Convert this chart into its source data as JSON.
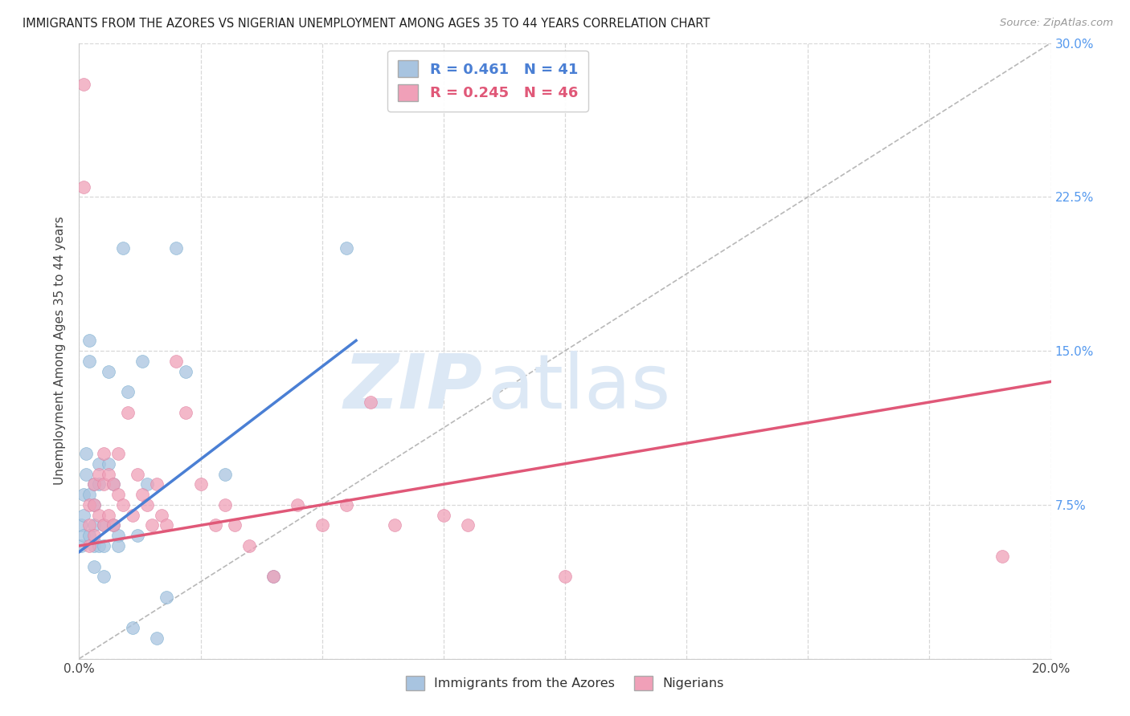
{
  "title": "IMMIGRANTS FROM THE AZORES VS NIGERIAN UNEMPLOYMENT AMONG AGES 35 TO 44 YEARS CORRELATION CHART",
  "source": "Source: ZipAtlas.com",
  "ylabel": "Unemployment Among Ages 35 to 44 years",
  "xlim": [
    0,
    0.2
  ],
  "ylim": [
    0,
    0.3
  ],
  "xticks": [
    0.0,
    0.025,
    0.05,
    0.075,
    0.1,
    0.125,
    0.15,
    0.175,
    0.2
  ],
  "yticks": [
    0.0,
    0.075,
    0.15,
    0.225,
    0.3
  ],
  "blue_R": 0.461,
  "blue_N": 41,
  "pink_R": 0.245,
  "pink_N": 46,
  "blue_color": "#a8c4e0",
  "pink_color": "#f0a0b8",
  "blue_edge_color": "#7aaed0",
  "pink_edge_color": "#e080a0",
  "blue_line_color": "#4a7fd4",
  "pink_line_color": "#e05878",
  "ref_line_color": "#b8b8b8",
  "grid_color": "#d8d8d8",
  "watermark_color": "#dce8f5",
  "tick_color": "#5599ee",
  "blue_line_x0": 0.0,
  "blue_line_y0": 0.052,
  "blue_line_x1": 0.057,
  "blue_line_y1": 0.155,
  "pink_line_x0": 0.0,
  "pink_line_y0": 0.055,
  "pink_line_x1": 0.2,
  "pink_line_y1": 0.135,
  "blue_scatter_x": [
    0.0005,
    0.0005,
    0.001,
    0.001,
    0.001,
    0.0015,
    0.0015,
    0.002,
    0.002,
    0.002,
    0.002,
    0.003,
    0.003,
    0.003,
    0.003,
    0.003,
    0.004,
    0.004,
    0.004,
    0.005,
    0.005,
    0.005,
    0.006,
    0.006,
    0.007,
    0.007,
    0.008,
    0.008,
    0.009,
    0.01,
    0.011,
    0.012,
    0.013,
    0.014,
    0.016,
    0.018,
    0.02,
    0.022,
    0.03,
    0.04,
    0.055
  ],
  "blue_scatter_y": [
    0.065,
    0.055,
    0.08,
    0.07,
    0.06,
    0.1,
    0.09,
    0.155,
    0.145,
    0.08,
    0.06,
    0.085,
    0.075,
    0.065,
    0.055,
    0.045,
    0.095,
    0.085,
    0.055,
    0.065,
    0.055,
    0.04,
    0.14,
    0.095,
    0.085,
    0.065,
    0.06,
    0.055,
    0.2,
    0.13,
    0.015,
    0.06,
    0.145,
    0.085,
    0.01,
    0.03,
    0.2,
    0.14,
    0.09,
    0.04,
    0.2
  ],
  "pink_scatter_x": [
    0.001,
    0.001,
    0.002,
    0.002,
    0.002,
    0.003,
    0.003,
    0.003,
    0.004,
    0.004,
    0.005,
    0.005,
    0.005,
    0.006,
    0.006,
    0.007,
    0.007,
    0.008,
    0.008,
    0.009,
    0.01,
    0.011,
    0.012,
    0.013,
    0.014,
    0.015,
    0.016,
    0.017,
    0.018,
    0.02,
    0.022,
    0.025,
    0.028,
    0.03,
    0.032,
    0.035,
    0.04,
    0.045,
    0.05,
    0.055,
    0.06,
    0.065,
    0.075,
    0.08,
    0.1,
    0.19
  ],
  "pink_scatter_y": [
    0.28,
    0.23,
    0.075,
    0.065,
    0.055,
    0.085,
    0.075,
    0.06,
    0.09,
    0.07,
    0.1,
    0.085,
    0.065,
    0.09,
    0.07,
    0.085,
    0.065,
    0.1,
    0.08,
    0.075,
    0.12,
    0.07,
    0.09,
    0.08,
    0.075,
    0.065,
    0.085,
    0.07,
    0.065,
    0.145,
    0.12,
    0.085,
    0.065,
    0.075,
    0.065,
    0.055,
    0.04,
    0.075,
    0.065,
    0.075,
    0.125,
    0.065,
    0.07,
    0.065,
    0.04,
    0.05
  ],
  "background_color": "#ffffff"
}
